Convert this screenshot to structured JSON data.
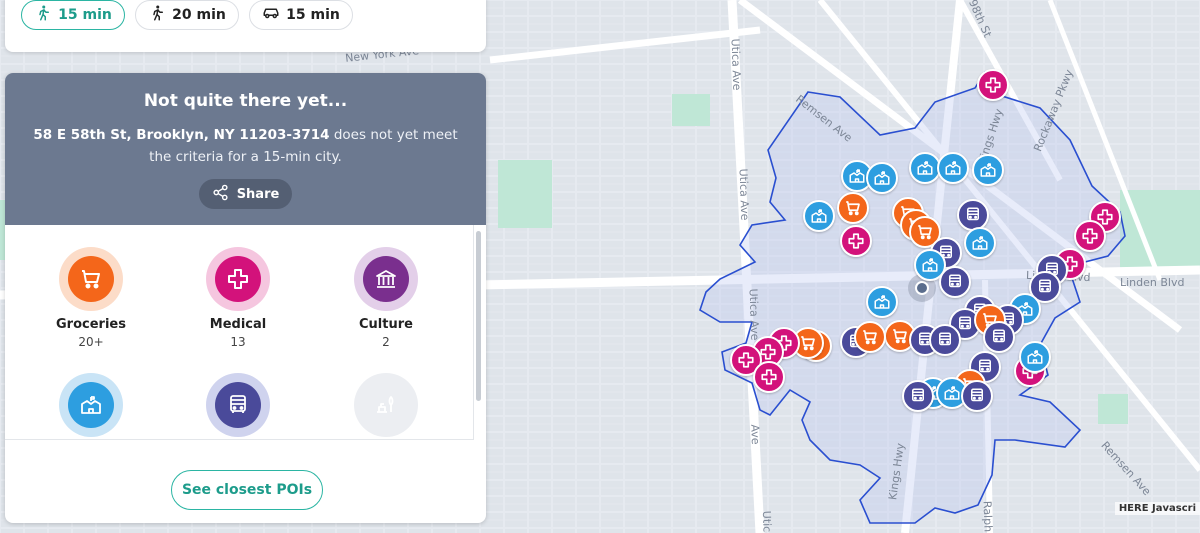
{
  "modes": [
    {
      "label": "15 min",
      "icon": "walking-icon",
      "active": true
    },
    {
      "label": "20 min",
      "icon": "walking-icon",
      "active": false
    },
    {
      "label": "15 min",
      "icon": "car-icon",
      "active": false
    }
  ],
  "panel": {
    "title": "Not quite there yet...",
    "address": "58 E 58th St, Brooklyn, NY 11203-3714",
    "message": " does not yet meet the criteria for a 15-min city.",
    "share_label": "Share",
    "closest_label": "See closest POIs"
  },
  "categories": [
    {
      "label": "Groceries",
      "count": "20+",
      "icon": "cart-icon"
    },
    {
      "label": "Medical",
      "count": "13",
      "icon": "medical-cross-icon"
    },
    {
      "label": "Culture",
      "count": "2",
      "icon": "museum-icon"
    },
    {
      "label": "",
      "count": "",
      "icon": "school-icon"
    },
    {
      "label": "",
      "count": "",
      "icon": "bus-icon"
    },
    {
      "label": "",
      "count": "",
      "icon": "leisure-icon"
    }
  ],
  "map": {
    "street_labels": [
      {
        "text": "New York Ave"
      },
      {
        "text": "Utica Ave"
      },
      {
        "text": "Utica Ave"
      },
      {
        "text": "Utica Ave"
      },
      {
        "text": "Remsen Ave"
      },
      {
        "text": "Remsen Ave"
      },
      {
        "text": "Kings Hwy"
      },
      {
        "text": "Kings Hwy"
      },
      {
        "text": "Linden Blvd"
      },
      {
        "text": "Linden Blvd"
      },
      {
        "text": "98th St"
      },
      {
        "text": "Rockaway Pkwy"
      },
      {
        "text": "Ralph"
      },
      {
        "text": "Ave"
      },
      {
        "text": "Utic"
      }
    ],
    "attribution": "HERE Javascri",
    "colors": {
      "groceries": "#f4661a",
      "medical": "#d3127b",
      "education": "#2d9ee0",
      "transit": "#4a4a9a",
      "isoline": "#2a4fd0",
      "accent": "#2bb5a3",
      "header": "#6c7990"
    }
  }
}
